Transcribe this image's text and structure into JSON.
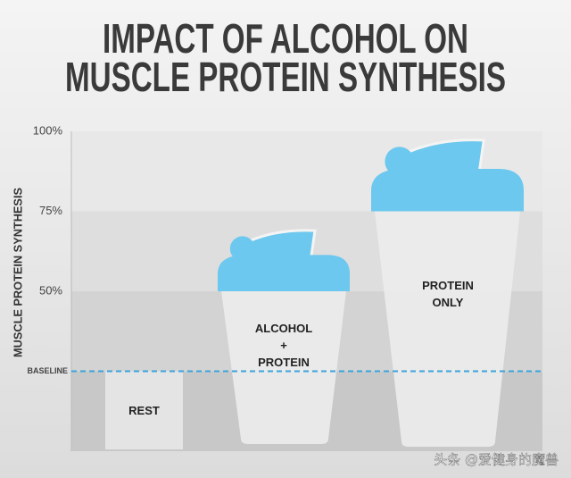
{
  "chart_data": {
    "type": "bar",
    "title": [
      "IMPACT OF ALCOHOL ON",
      "MUSCLE PROTEIN SYNTHESIS"
    ],
    "y_label": "MUSCLE PROTEIN SYNTHESIS",
    "categories": [
      "REST",
      "ALCOHOL + PROTEIN",
      "PROTEIN ONLY"
    ],
    "values": [
      25,
      50,
      75
    ],
    "colors": {
      "rest": "#e4e4e4",
      "cup": "#ececec",
      "lid": "#6cc8ee",
      "baseline": "#3ba3dc"
    },
    "ylim": [
      0,
      100
    ],
    "yticks": [
      {
        "value": 100,
        "label": "100%"
      },
      {
        "value": 75,
        "label": "75%"
      },
      {
        "value": 50,
        "label": "50%"
      },
      {
        "value": 25,
        "label": "BASELINE"
      }
    ],
    "watermark": "头条 @爱健身的魔兽"
  }
}
